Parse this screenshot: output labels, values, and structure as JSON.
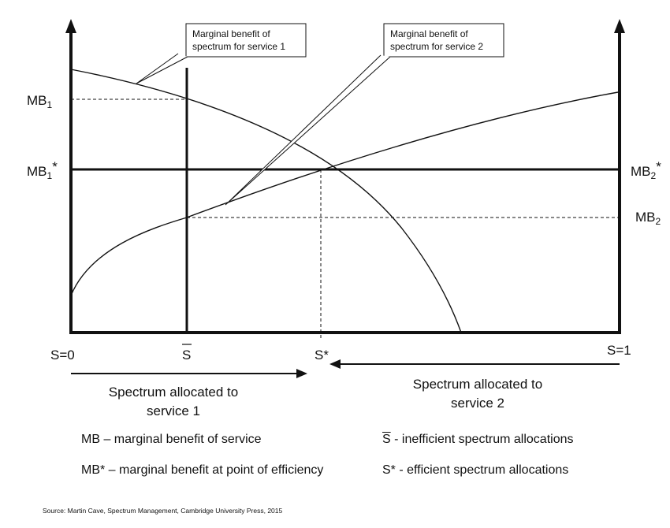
{
  "callouts": {
    "service1": [
      "Marginal benefit of",
      "spectrum for service 1"
    ],
    "service2": [
      "Marginal benefit of",
      "spectrum for service 2"
    ]
  },
  "y_labels": {
    "mb1": "MB",
    "mb1_sub": "1",
    "mb1_star": "MB",
    "mb1_star_sub": "1",
    "mb1_star_suffix": "*",
    "mb2_star": "MB",
    "mb2_star_sub": "2",
    "mb2_star_suffix": "*",
    "mb2": "MB",
    "mb2_sub": "2"
  },
  "x_labels": {
    "s0": "S=0",
    "sbar": "S",
    "sstar": "S*",
    "s1": "S=1"
  },
  "allocation": {
    "service1": [
      "Spectrum allocated to",
      "service 1"
    ],
    "service2": [
      "Spectrum allocated to",
      "service 2"
    ]
  },
  "legend": {
    "mb": "MB – marginal benefit of service",
    "mbstar": "MB* – marginal benefit at point of efficiency",
    "sbar_symbol": "S",
    "sbar_text": " - inefficient spectrum allocations",
    "sstar": "S* - efficient spectrum allocations"
  },
  "source": "Source: Martin Cave, Spectrum Management, Cambridge University Press, 2015"
}
